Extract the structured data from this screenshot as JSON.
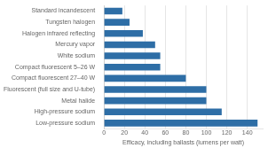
{
  "chart_data": {
    "type": "bar",
    "orientation": "horizontal",
    "categories": [
      "Low-pressure sodium",
      "High-pressure sodium",
      "Metal halide",
      "Fluorescent (full size and U-tube)",
      "Compact fluorescent 27–40 W",
      "Compact fluorescent 5–26 W",
      "White sodium",
      "Mercury vapor",
      "Halogen infrared reflecting",
      "Tungsten halogen",
      "Standard incandescent"
    ],
    "values": [
      150,
      115,
      100,
      100,
      80,
      55,
      55,
      50,
      38,
      25,
      18
    ],
    "color": "#2e6ea6",
    "xlabel": "Efficacy, including ballasts (lumens per watt)",
    "xlim": [
      0,
      155
    ],
    "xticks": [
      0,
      20,
      40,
      60,
      80,
      100,
      120,
      140
    ],
    "grid": true
  }
}
